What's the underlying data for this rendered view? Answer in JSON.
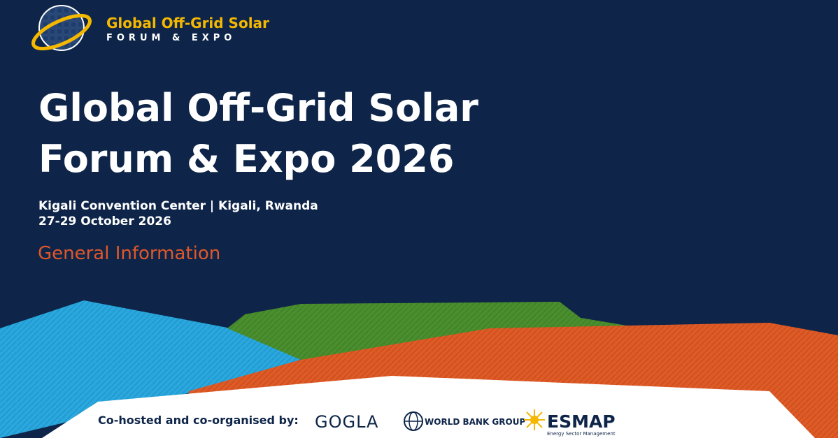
{
  "logo": {
    "title": "Global Off-Grid Solar",
    "subtitle": "FORUM & EXPO"
  },
  "heading": [
    "Global Off-Grid Solar",
    "Forum & Expo 2026"
  ],
  "venue": "Kigali Convention Center | Kigali, Rwanda",
  "date": "27-29 October 2026",
  "section": "General Information",
  "footer": {
    "label": "Co-hosted and co-organised by:",
    "partners": [
      {
        "name": "GOGLA"
      },
      {
        "name": "WORLD BANK GROUP"
      },
      {
        "name": "ESMAP",
        "subtitle": "Energy Sector Management"
      }
    ]
  }
}
